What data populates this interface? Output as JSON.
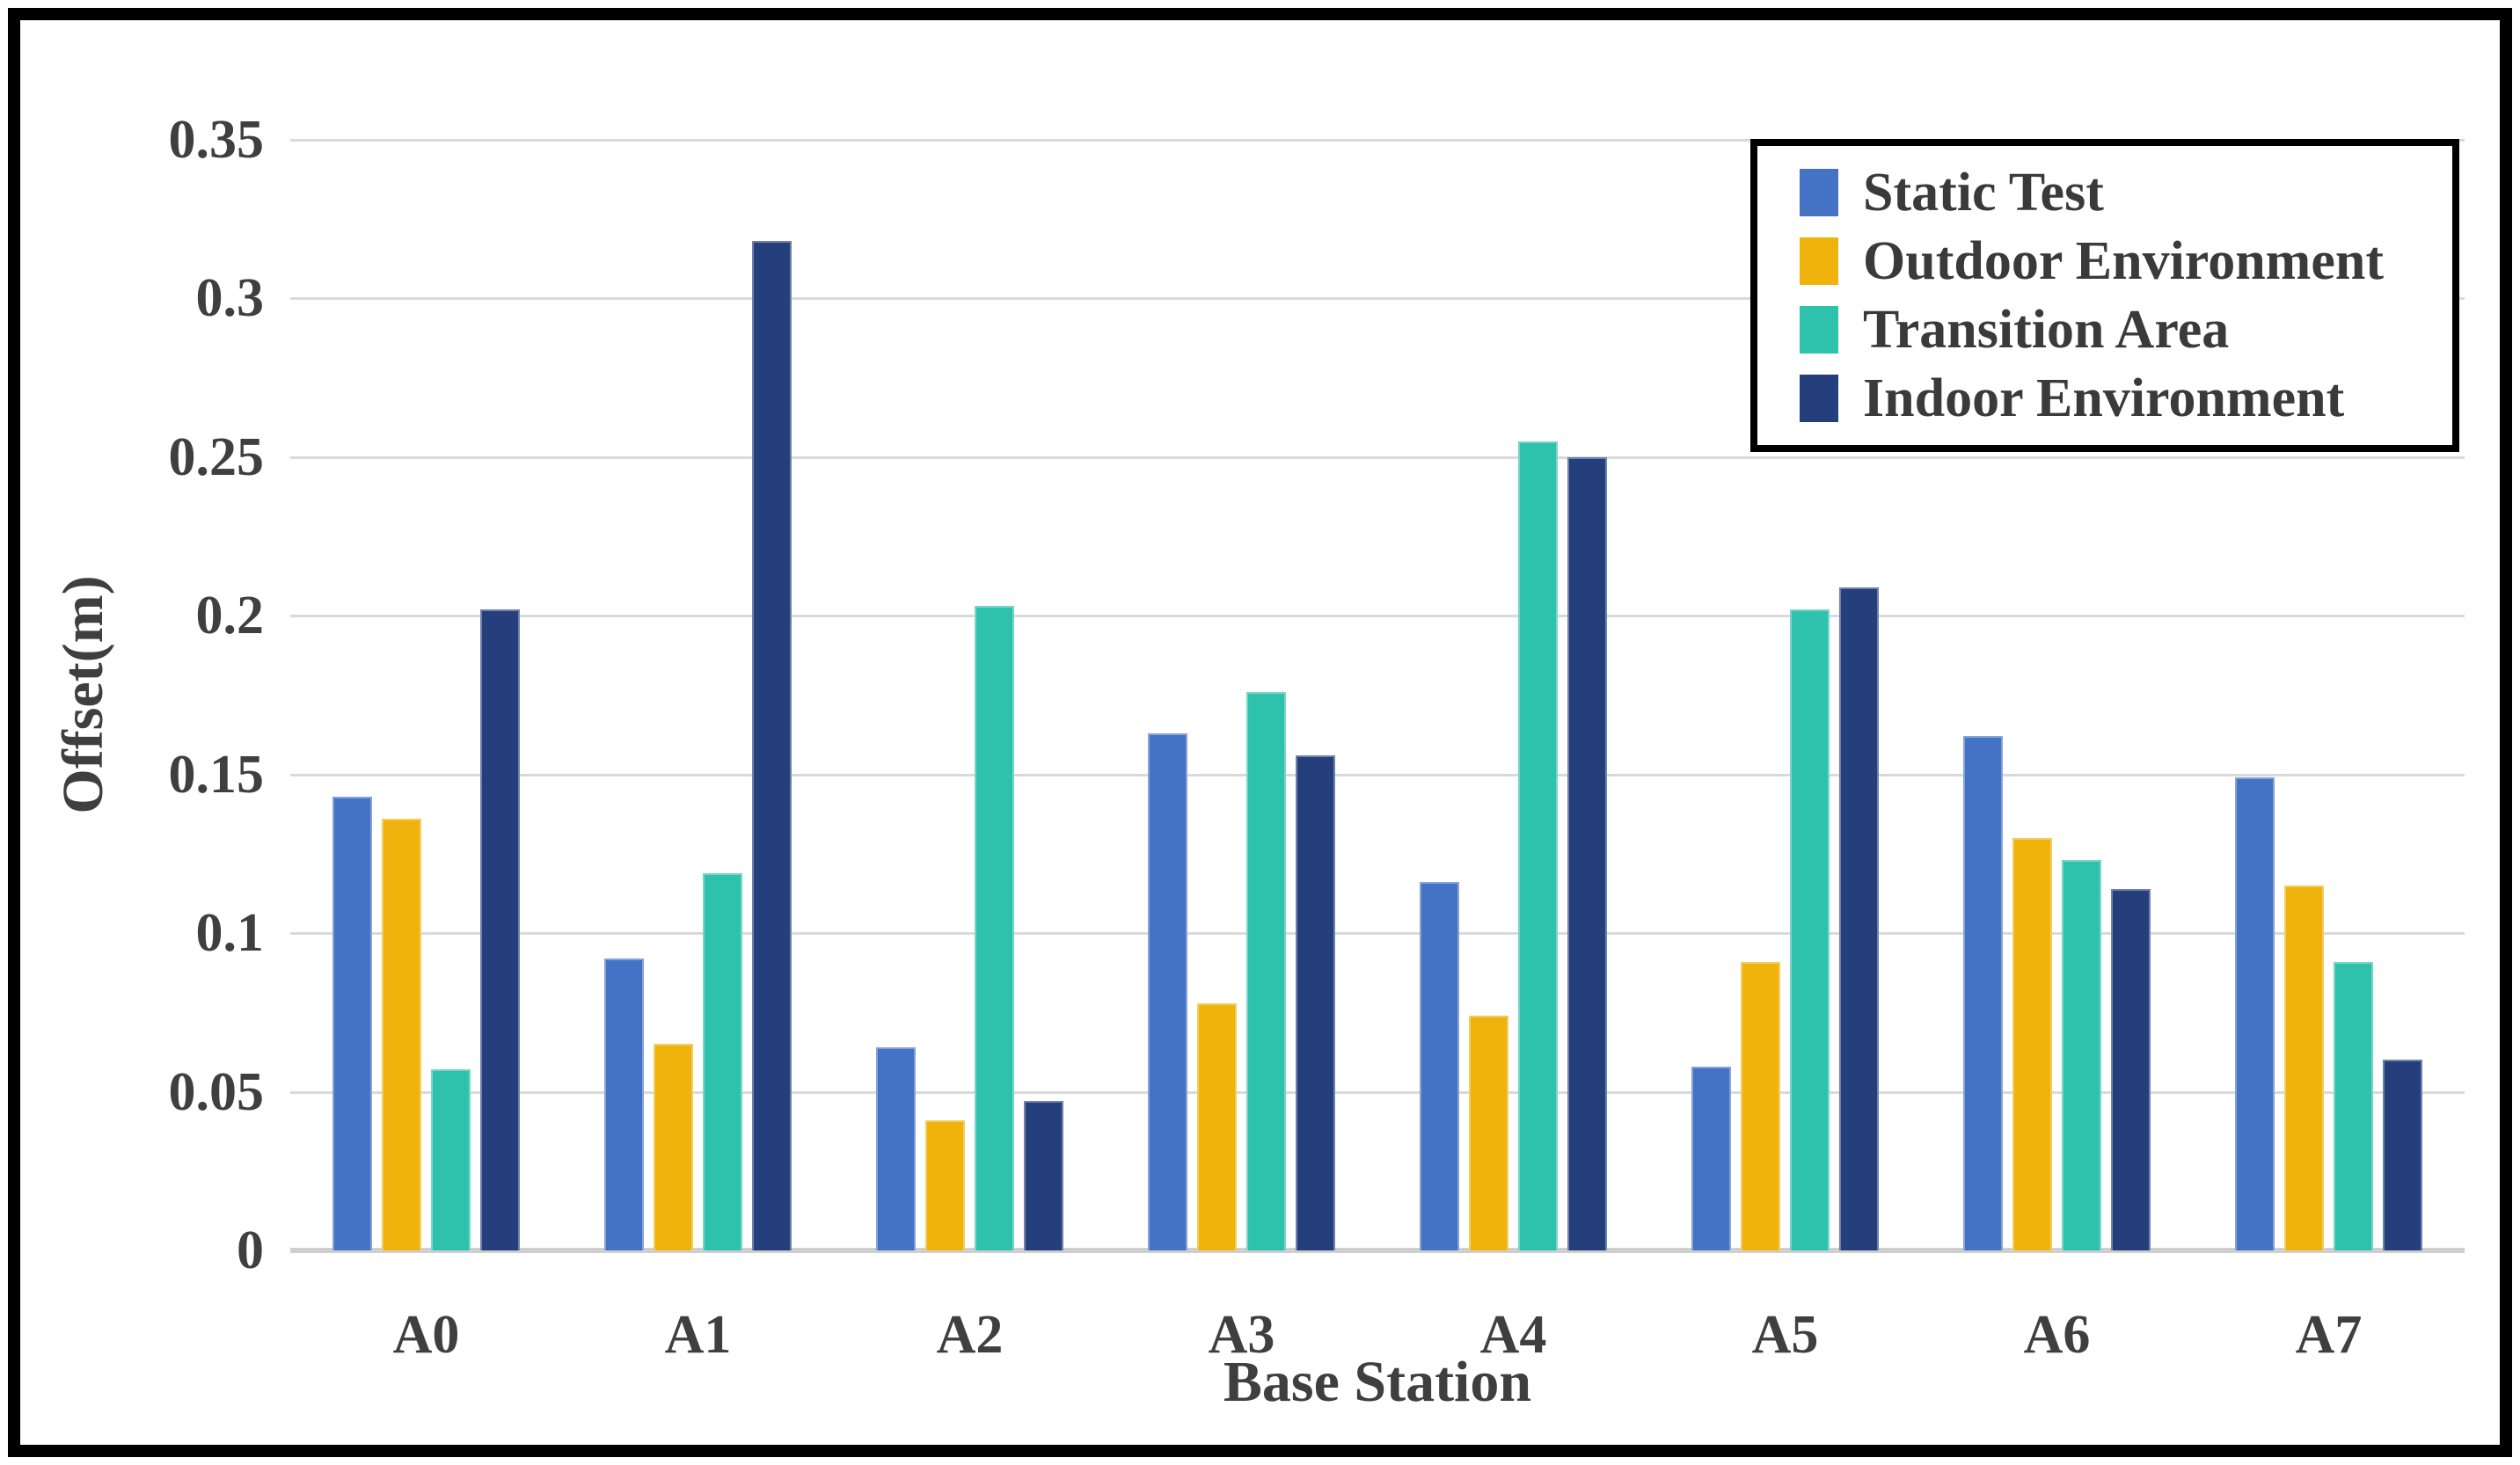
{
  "figure": {
    "background": "#ffffff",
    "frame_border_color": "#000000"
  },
  "chart_data": {
    "type": "bar",
    "title": "",
    "xlabel": "Base Station",
    "ylabel": "Offset(m)",
    "categories": [
      "A0",
      "A1",
      "A2",
      "A3",
      "A4",
      "A5",
      "A6",
      "A7"
    ],
    "series": [
      {
        "name": "Static Test",
        "color": "#4472C4",
        "values": [
          0.143,
          0.092,
          0.064,
          0.163,
          0.116,
          0.058,
          0.162,
          0.149
        ]
      },
      {
        "name": "Outdoor Environment",
        "color": "#EFB30B",
        "values": [
          0.136,
          0.065,
          0.041,
          0.078,
          0.074,
          0.091,
          0.13,
          0.115
        ]
      },
      {
        "name": "Transition Area",
        "color": "#2EC1AC",
        "values": [
          0.057,
          0.119,
          0.203,
          0.176,
          0.255,
          0.202,
          0.123,
          0.091
        ]
      },
      {
        "name": "Indoor Environment",
        "color": "#243F7B",
        "values": [
          0.202,
          0.318,
          0.047,
          0.156,
          0.25,
          0.209,
          0.114,
          0.06
        ]
      }
    ],
    "y_axis": {
      "min": 0,
      "max": 0.35,
      "tick_step": 0.05,
      "tick_labels": [
        "0",
        "0.05",
        "0.1",
        "0.15",
        "0.2",
        "0.25",
        "0.3",
        "0.35"
      ]
    },
    "x_axis": {
      "tick_labels": [
        "A0",
        "A1",
        "A2",
        "A3",
        "A4",
        "A5",
        "A6",
        "A7"
      ]
    },
    "grid": "horizontal",
    "gridline_color": "#DADADA",
    "legend_position": "top-right",
    "legend_entries": [
      "Static Test",
      "Outdoor Environment",
      "Transition Area",
      "Indoor Environment"
    ],
    "text_color": "#3F3F3F"
  }
}
